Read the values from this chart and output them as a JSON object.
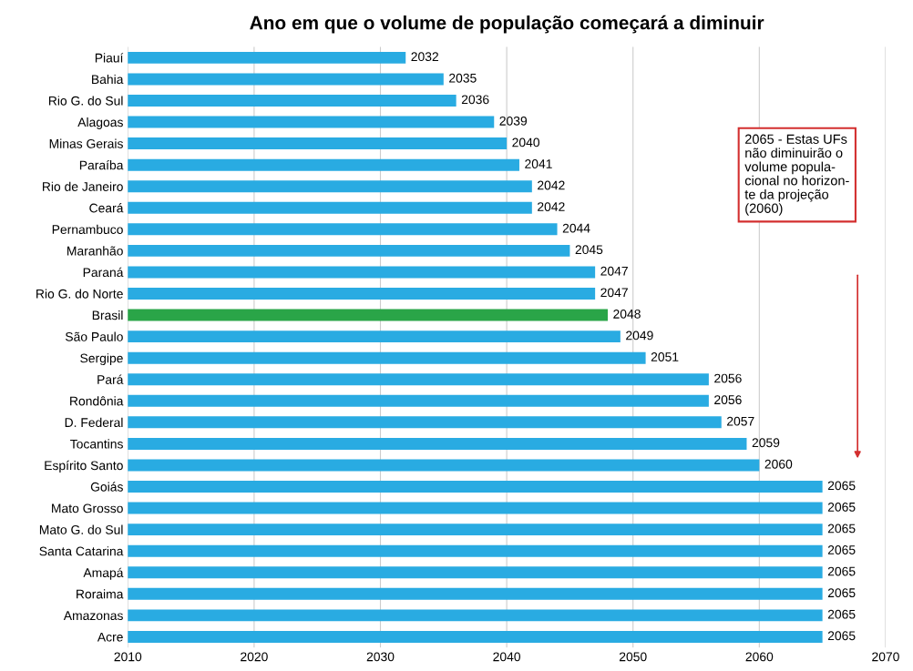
{
  "chart_data": {
    "type": "bar",
    "orientation": "horizontal",
    "title": "Ano em que o volume de população começará a diminuir",
    "categories": [
      "Piauí",
      "Bahia",
      "Rio G. do Sul",
      "Alagoas",
      "Minas Gerais",
      "Paraíba",
      "Rio de Janeiro",
      "Ceará",
      "Pernambuco",
      "Maranhão",
      "Paraná",
      "Rio G. do Norte",
      "Brasil",
      "São Paulo",
      "Sergipe",
      "Pará",
      "Rondônia",
      "D. Federal",
      "Tocantins",
      "Espírito Santo",
      "Goiás",
      "Mato Grosso",
      "Mato G. do Sul",
      "Santa Catarina",
      "Amapá",
      "Roraima",
      "Amazonas",
      "Acre"
    ],
    "values": [
      2032,
      2035,
      2036,
      2039,
      2040,
      2041,
      2042,
      2042,
      2044,
      2045,
      2047,
      2047,
      2048,
      2049,
      2051,
      2056,
      2056,
      2057,
      2059,
      2060,
      2065,
      2065,
      2065,
      2065,
      2065,
      2065,
      2065,
      2065
    ],
    "colors": [
      "#29abe2",
      "#29abe2",
      "#29abe2",
      "#29abe2",
      "#29abe2",
      "#29abe2",
      "#29abe2",
      "#29abe2",
      "#29abe2",
      "#29abe2",
      "#29abe2",
      "#29abe2",
      "#2aa548",
      "#29abe2",
      "#29abe2",
      "#29abe2",
      "#29abe2",
      "#29abe2",
      "#29abe2",
      "#29abe2",
      "#29abe2",
      "#29abe2",
      "#29abe2",
      "#29abe2",
      "#29abe2",
      "#29abe2",
      "#29abe2",
      "#29abe2"
    ],
    "xlim": [
      2010,
      2070
    ],
    "xticks": [
      2010,
      2020,
      2030,
      2040,
      2050,
      2060,
      2070
    ],
    "grid": "x",
    "data_labels": true,
    "annotations": [
      "2065 - Estas UFs\nnão diminuirão o\nvolume popula-\ncional no horizon-\nte da projeção\n(2060)"
    ]
  }
}
